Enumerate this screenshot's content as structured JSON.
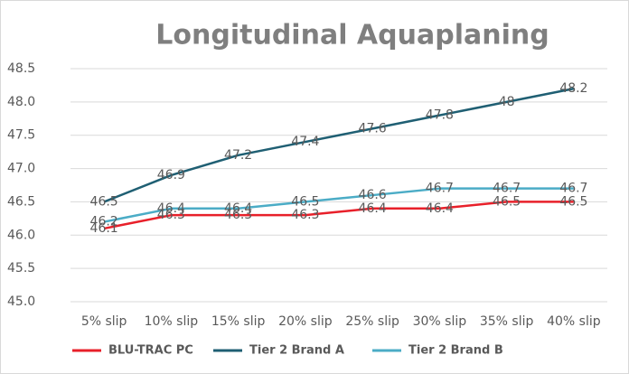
{
  "chart_data": {
    "type": "line",
    "title": "Longitudinal Aquaplaning",
    "categories": [
      "5% slip",
      "10% slip",
      "15% slip",
      "20% slip",
      "25% slip",
      "30% slip",
      "35% slip",
      "40% slip"
    ],
    "series": [
      {
        "name": "BLU-TRAC PC",
        "color": "#e8202a",
        "values": [
          46.1,
          46.3,
          46.3,
          46.3,
          46.4,
          46.4,
          46.5,
          46.5
        ]
      },
      {
        "name": "Tier 2 Brand A",
        "color": "#1f5f73",
        "values": [
          46.5,
          46.9,
          47.2,
          47.4,
          47.6,
          47.8,
          48.0,
          48.2
        ]
      },
      {
        "name": "Tier 2 Brand B",
        "color": "#4bacc6",
        "values": [
          46.2,
          46.4,
          46.4,
          46.5,
          46.6,
          46.7,
          46.7,
          46.7
        ]
      }
    ],
    "ylim": [
      45.0,
      48.5
    ],
    "yticks": [
      {
        "value": 45,
        "label": "45.0"
      },
      45.5,
      {
        "value": 46,
        "label": "46.0"
      },
      46.5,
      {
        "value": 47,
        "label": "47.0"
      },
      47.5,
      {
        "value": 48,
        "label": "48.0"
      },
      48.5
    ],
    "grid": true,
    "legend": "bottom"
  }
}
